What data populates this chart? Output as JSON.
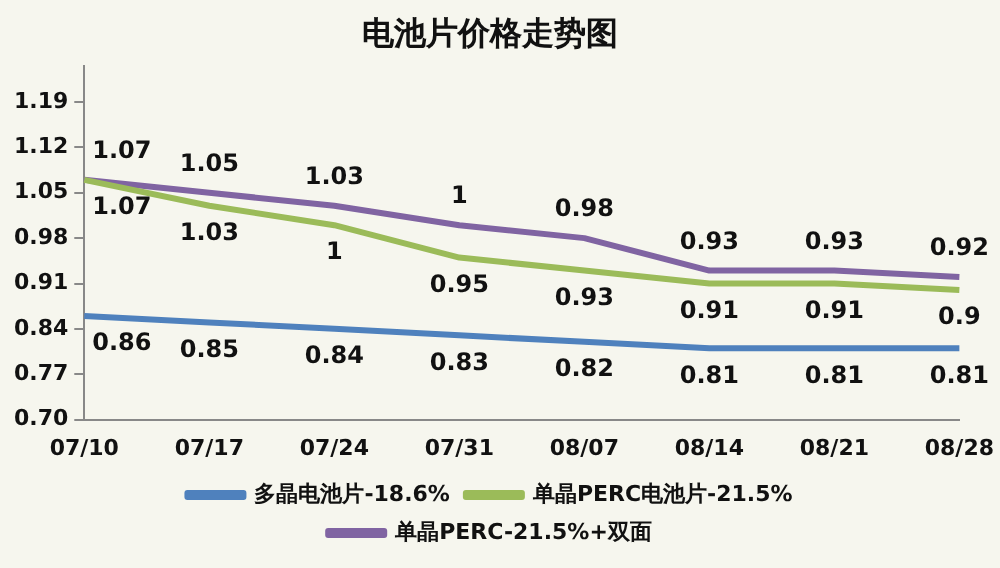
{
  "chart_data": {
    "type": "line",
    "title": "电池片价格走势图",
    "categories": [
      "07/10",
      "07/17",
      "07/24",
      "07/31",
      "08/07",
      "08/14",
      "08/21",
      "08/28"
    ],
    "series": [
      {
        "name": "多晶电池片-18.6%",
        "color": "#4f81bd",
        "values": [
          0.86,
          0.85,
          0.84,
          0.83,
          0.82,
          0.81,
          0.81,
          0.81
        ]
      },
      {
        "name": "单晶PERC电池片-21.5%",
        "color": "#9bbb59",
        "values": [
          1.07,
          1.03,
          1,
          0.95,
          0.93,
          0.91,
          0.91,
          0.9
        ]
      },
      {
        "name": "单晶PERC-21.5%+双面",
        "color": "#8064a2",
        "values": [
          1.07,
          1.05,
          1.03,
          1,
          0.98,
          0.93,
          0.93,
          0.92
        ]
      }
    ],
    "ylim": [
      0.7,
      1.245
    ],
    "yticks": [
      {
        "value": 0.7,
        "label": "0.70"
      },
      0.77,
      0.84,
      0.91,
      0.98,
      1.05,
      1.12,
      1.19
    ],
    "grid": false,
    "legend": "bottom",
    "marker": "none",
    "line_style": "solid",
    "data_labels": true
  }
}
